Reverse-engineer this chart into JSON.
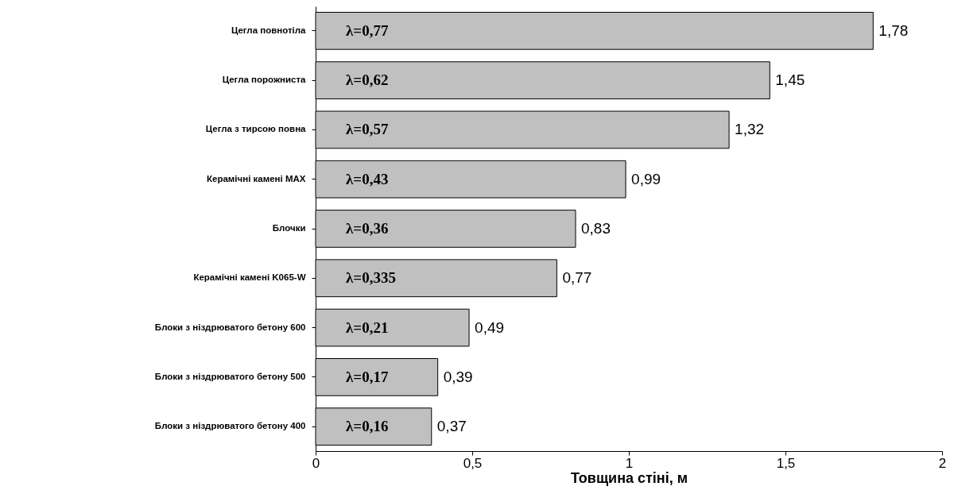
{
  "chart_data": {
    "type": "bar",
    "orientation": "horizontal",
    "xlabel": "Товщина стіні, м",
    "categories": [
      "Цегла повнотіла",
      "Цегла порожниста",
      "Цегла з тирсою повна",
      "Керамічні камені MAX",
      "Блочки",
      "Керамічні камені  K065-W",
      "Блоки з ніздрюватого бетону 600",
      "Блоки з ніздрюватого бетону 500",
      "Блоки з ніздрюватого бетону 400"
    ],
    "values": [
      1.78,
      1.45,
      1.32,
      0.99,
      0.83,
      0.77,
      0.49,
      0.39,
      0.37
    ],
    "value_labels": [
      "1,78",
      "1,45",
      "1,32",
      "0,99",
      "0,83",
      "0,77",
      "0,49",
      "0,39",
      "0,37"
    ],
    "color": "#c0c0c0",
    "xlim": [
      0,
      2
    ],
    "xticks": [
      0,
      {
        "value": 0.5,
        "label": "0,5"
      },
      1,
      {
        "value": 1.5,
        "label": "1,5"
      },
      2
    ],
    "grid": false,
    "annotations": [
      "λ=0,77",
      "λ=0,62",
      "λ=0,57",
      "λ=0,43",
      "λ=0,36",
      "λ=0,335",
      "λ=0,21",
      "λ=0,17",
      "λ=0,16"
    ]
  }
}
